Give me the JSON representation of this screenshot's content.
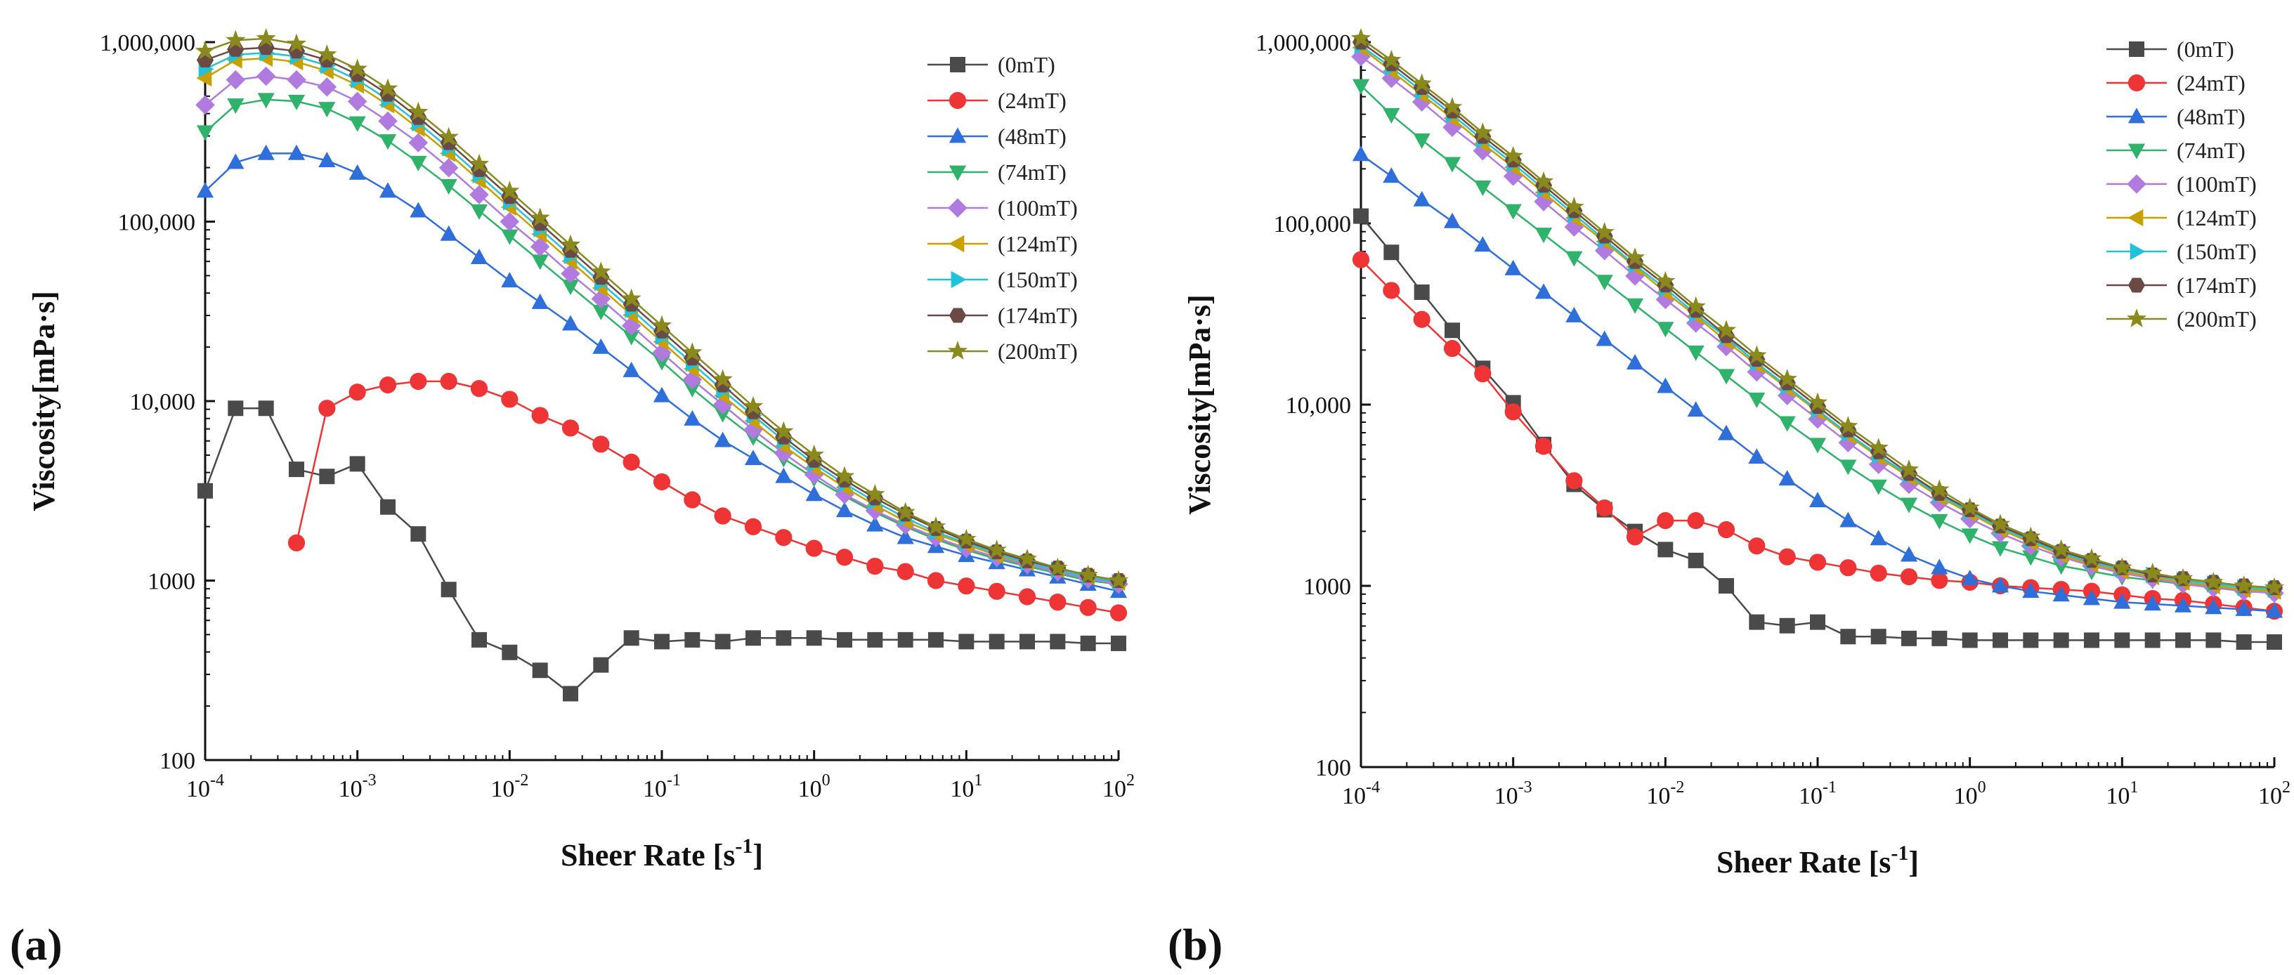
{
  "markers": {
    "0mT": "square",
    "24mT": "circle",
    "48mT": "triangle-up",
    "74mT": "triangle-down",
    "100mT": "diamond",
    "124mT": "triangle-left",
    "150mT": "triangle-right",
    "174mT": "hexagon",
    "200mT": "star"
  },
  "colors": {
    "0mT": "#4a4a4a",
    "24mT": "#ee3434",
    "48mT": "#2f6fdc",
    "74mT": "#2fb36a",
    "100mT": "#b07adf",
    "124mT": "#c8a000",
    "150mT": "#22c3d8",
    "174mT": "#6b4a45",
    "200mT": "#8a8a1c"
  },
  "chart_data": [
    {
      "type": "line",
      "panel_label": "(a)",
      "title": "",
      "xlabel": "Sheer Rate [s",
      "xlabel_sup": "-1",
      "xlabel_end": "]",
      "ylabel": "Viscosity[mPa·s]",
      "xscale": "log",
      "yscale": "log",
      "xlim": [
        0.0001,
        100
      ],
      "ylim": [
        100,
        1000000
      ],
      "x_ticks": [
        {
          "b": "10",
          "e": "-4"
        },
        {
          "b": "10",
          "e": "-3"
        },
        {
          "b": "10",
          "e": "-2"
        },
        {
          "b": "10",
          "e": "-1"
        },
        {
          "b": "10",
          "e": "0"
        },
        {
          "b": "10",
          "e": "1"
        },
        {
          "b": "10",
          "e": "2"
        }
      ],
      "y_ticks": [
        "100",
        "1000",
        "10,000",
        "100,000",
        "1,000,000"
      ],
      "legend_position": "top-right",
      "x_exponents": [
        -4,
        -3.8,
        -3.6,
        -3.4,
        -3.2,
        -3,
        -2.8,
        -2.6,
        -2.4,
        -2.2,
        -2,
        -1.8,
        -1.6,
        -1.4,
        -1.2,
        -1,
        -0.8,
        -0.6,
        -0.4,
        -0.2,
        0,
        0.2,
        0.4,
        0.6,
        0.8,
        1,
        1.2,
        1.4,
        1.6,
        1.8,
        2
      ],
      "series": [
        {
          "name": "(0mT)",
          "key": "0mT",
          "log_values": [
            3.5,
            3.96,
            3.96,
            3.62,
            3.58,
            3.65,
            3.41,
            3.26,
            2.95,
            2.67,
            2.6,
            2.5,
            2.37,
            2.53,
            2.68,
            2.66,
            2.67,
            2.66,
            2.68,
            2.68,
            2.68,
            2.67,
            2.67,
            2.67,
            2.67,
            2.66,
            2.66,
            2.66,
            2.66,
            2.65,
            2.65
          ]
        },
        {
          "name": "(24mT)",
          "key": "24mT",
          "log_values": [
            null,
            null,
            null,
            3.21,
            3.96,
            4.05,
            4.09,
            4.11,
            4.11,
            4.07,
            4.01,
            3.92,
            3.85,
            3.76,
            3.66,
            3.55,
            3.45,
            3.36,
            3.3,
            3.24,
            3.18,
            3.13,
            3.08,
            3.05,
            3.0,
            2.97,
            2.94,
            2.91,
            2.88,
            2.85,
            2.82
          ]
        },
        {
          "name": "(48mT)",
          "key": "48mT",
          "log_values": [
            5.17,
            5.33,
            5.38,
            5.38,
            5.34,
            5.27,
            5.17,
            5.06,
            4.93,
            4.8,
            4.67,
            4.55,
            4.43,
            4.3,
            4.17,
            4.03,
            3.9,
            3.78,
            3.68,
            3.58,
            3.48,
            3.39,
            3.31,
            3.24,
            3.19,
            3.14,
            3.1,
            3.06,
            3.02,
            2.98,
            2.94
          ]
        },
        {
          "name": "(74mT)",
          "key": "74mT",
          "log_values": [
            5.5,
            5.65,
            5.68,
            5.67,
            5.63,
            5.55,
            5.45,
            5.33,
            5.2,
            5.06,
            4.92,
            4.78,
            4.64,
            4.5,
            4.36,
            4.22,
            4.07,
            3.93,
            3.8,
            3.68,
            3.57,
            3.47,
            3.38,
            3.3,
            3.23,
            3.17,
            3.12,
            3.08,
            3.04,
            3.0,
            2.98
          ]
        },
        {
          "name": "(100mT)",
          "key": "100mT",
          "log_values": [
            5.65,
            5.79,
            5.81,
            5.79,
            5.75,
            5.67,
            5.56,
            5.44,
            5.3,
            5.15,
            5.0,
            4.86,
            4.71,
            4.57,
            4.42,
            4.27,
            4.12,
            3.98,
            3.84,
            3.71,
            3.59,
            3.48,
            3.39,
            3.31,
            3.24,
            3.18,
            3.13,
            3.09,
            3.05,
            3.01,
            2.98
          ]
        },
        {
          "name": "(124mT)",
          "key": "124mT",
          "log_values": [
            5.8,
            5.9,
            5.91,
            5.89,
            5.84,
            5.76,
            5.65,
            5.52,
            5.38,
            5.23,
            5.08,
            4.93,
            4.78,
            4.63,
            4.48,
            4.33,
            4.18,
            4.03,
            3.89,
            3.75,
            3.63,
            3.52,
            3.42,
            3.33,
            3.26,
            3.2,
            3.14,
            3.1,
            3.06,
            3.02,
            2.99
          ]
        },
        {
          "name": "(150mT)",
          "key": "150mT",
          "log_values": [
            5.85,
            5.93,
            5.94,
            5.92,
            5.87,
            5.79,
            5.68,
            5.55,
            5.41,
            5.26,
            5.11,
            4.96,
            4.81,
            4.66,
            4.51,
            4.36,
            4.21,
            4.06,
            3.92,
            3.78,
            3.65,
            3.54,
            3.44,
            3.35,
            3.27,
            3.21,
            3.15,
            3.1,
            3.06,
            3.02,
            2.99
          ]
        },
        {
          "name": "(174mT)",
          "key": "174mT",
          "log_values": [
            5.9,
            5.96,
            5.97,
            5.95,
            5.9,
            5.82,
            5.71,
            5.58,
            5.44,
            5.29,
            5.14,
            4.99,
            4.84,
            4.69,
            4.54,
            4.39,
            4.24,
            4.09,
            3.94,
            3.8,
            3.67,
            3.56,
            3.46,
            3.37,
            3.29,
            3.22,
            3.16,
            3.11,
            3.07,
            3.03,
            3.0
          ]
        },
        {
          "name": "(200mT)",
          "key": "200mT",
          "log_values": [
            5.95,
            6.01,
            6.02,
            5.99,
            5.93,
            5.85,
            5.74,
            5.61,
            5.47,
            5.32,
            5.17,
            5.02,
            4.87,
            4.72,
            4.57,
            4.42,
            4.27,
            4.12,
            3.97,
            3.83,
            3.7,
            3.58,
            3.48,
            3.38,
            3.3,
            3.23,
            3.17,
            3.12,
            3.07,
            3.03,
            3.0
          ]
        }
      ]
    },
    {
      "type": "line",
      "panel_label": "(b)",
      "title": "",
      "xlabel": "Sheer Rate [s",
      "xlabel_sup": "-1",
      "xlabel_end": "]",
      "ylabel": "Viscosity[mPa·s]",
      "xscale": "log",
      "yscale": "log",
      "xlim": [
        0.0001,
        100
      ],
      "ylim": [
        100,
        1000000
      ],
      "x_ticks": [
        {
          "b": "10",
          "e": "-4"
        },
        {
          "b": "10",
          "e": "-3"
        },
        {
          "b": "10",
          "e": "-2"
        },
        {
          "b": "10",
          "e": "-1"
        },
        {
          "b": "10",
          "e": "0"
        },
        {
          "b": "10",
          "e": "1"
        },
        {
          "b": "10",
          "e": "2"
        }
      ],
      "y_ticks": [
        "100",
        "1000",
        "10,000",
        "100,000",
        "1,000,000"
      ],
      "legend_position": "top-right",
      "x_exponents": [
        -4,
        -3.8,
        -3.6,
        -3.4,
        -3.2,
        -3,
        -2.8,
        -2.6,
        -2.4,
        -2.2,
        -2,
        -1.8,
        -1.6,
        -1.4,
        -1.2,
        -1,
        -0.8,
        -0.6,
        -0.4,
        -0.2,
        0,
        0.2,
        0.4,
        0.6,
        0.8,
        1,
        1.2,
        1.4,
        1.6,
        1.8,
        2
      ],
      "series": [
        {
          "name": "(0mT)",
          "key": "0mT",
          "log_values": [
            5.04,
            4.84,
            4.62,
            4.41,
            4.2,
            4.01,
            3.78,
            3.56,
            3.42,
            3.3,
            3.2,
            3.14,
            3.0,
            2.8,
            2.78,
            2.8,
            2.72,
            2.72,
            2.71,
            2.71,
            2.7,
            2.7,
            2.7,
            2.7,
            2.7,
            2.7,
            2.7,
            2.7,
            2.7,
            2.69,
            2.69
          ]
        },
        {
          "name": "(24mT)",
          "key": "24mT",
          "log_values": [
            4.8,
            4.63,
            4.47,
            4.31,
            4.17,
            3.96,
            3.77,
            3.58,
            3.43,
            3.27,
            3.36,
            3.36,
            3.31,
            3.22,
            3.16,
            3.13,
            3.1,
            3.07,
            3.05,
            3.03,
            3.02,
            3.0,
            2.99,
            2.98,
            2.97,
            2.95,
            2.93,
            2.92,
            2.9,
            2.88,
            2.86
          ]
        },
        {
          "name": "(48mT)",
          "key": "48mT",
          "log_values": [
            5.38,
            5.26,
            5.13,
            5.01,
            4.88,
            4.75,
            4.62,
            4.49,
            4.36,
            4.23,
            4.1,
            3.97,
            3.84,
            3.71,
            3.59,
            3.47,
            3.36,
            3.26,
            3.17,
            3.1,
            3.04,
            3.0,
            2.97,
            2.95,
            2.93,
            2.91,
            2.9,
            2.89,
            2.88,
            2.87,
            2.86
          ]
        },
        {
          "name": "(74mT)",
          "key": "74mT",
          "log_values": [
            5.76,
            5.6,
            5.46,
            5.33,
            5.2,
            5.07,
            4.94,
            4.81,
            4.68,
            4.55,
            4.42,
            4.29,
            4.16,
            4.03,
            3.9,
            3.78,
            3.66,
            3.55,
            3.45,
            3.36,
            3.28,
            3.21,
            3.16,
            3.11,
            3.08,
            3.05,
            3.03,
            3.01,
            2.99,
            2.98,
            2.97
          ]
        },
        {
          "name": "(100mT)",
          "key": "100mT",
          "log_values": [
            5.92,
            5.8,
            5.67,
            5.53,
            5.4,
            5.26,
            5.12,
            4.98,
            4.85,
            4.71,
            4.58,
            4.45,
            4.32,
            4.18,
            4.05,
            3.92,
            3.79,
            3.67,
            3.56,
            3.46,
            3.37,
            3.29,
            3.22,
            3.16,
            3.11,
            3.07,
            3.04,
            3.01,
            2.99,
            2.97,
            2.96
          ]
        },
        {
          "name": "(124mT)",
          "key": "124mT",
          "log_values": [
            5.97,
            5.84,
            5.71,
            5.58,
            5.44,
            5.31,
            5.17,
            5.03,
            4.9,
            4.76,
            4.62,
            4.49,
            4.35,
            4.22,
            4.09,
            3.96,
            3.83,
            3.71,
            3.6,
            3.49,
            3.4,
            3.31,
            3.24,
            3.17,
            3.12,
            3.08,
            3.05,
            3.02,
            3.0,
            2.98,
            2.97
          ]
        },
        {
          "name": "(150mT)",
          "key": "150mT",
          "log_values": [
            5.98,
            5.86,
            5.73,
            5.6,
            5.46,
            5.33,
            5.19,
            5.05,
            4.91,
            4.77,
            4.64,
            4.5,
            4.37,
            4.23,
            4.1,
            3.97,
            3.84,
            3.72,
            3.61,
            3.5,
            3.41,
            3.32,
            3.25,
            3.18,
            3.13,
            3.09,
            3.06,
            3.03,
            3.01,
            2.99,
            2.98
          ]
        },
        {
          "name": "(174mT)",
          "key": "174mT",
          "log_values": [
            6.0,
            5.88,
            5.75,
            5.62,
            5.48,
            5.35,
            5.21,
            5.07,
            4.93,
            4.79,
            4.66,
            4.52,
            4.38,
            4.25,
            4.12,
            3.99,
            3.86,
            3.74,
            3.62,
            3.51,
            3.42,
            3.33,
            3.26,
            3.19,
            3.14,
            3.1,
            3.06,
            3.04,
            3.02,
            3.0,
            2.99
          ]
        },
        {
          "name": "(200mT)",
          "key": "200mT",
          "log_values": [
            6.02,
            5.9,
            5.77,
            5.64,
            5.5,
            5.37,
            5.23,
            5.09,
            4.95,
            4.81,
            4.68,
            4.54,
            4.41,
            4.27,
            4.14,
            4.01,
            3.88,
            3.76,
            3.64,
            3.53,
            3.43,
            3.34,
            3.27,
            3.2,
            3.15,
            3.1,
            3.07,
            3.04,
            3.02,
            3.0,
            2.99
          ]
        }
      ]
    }
  ]
}
